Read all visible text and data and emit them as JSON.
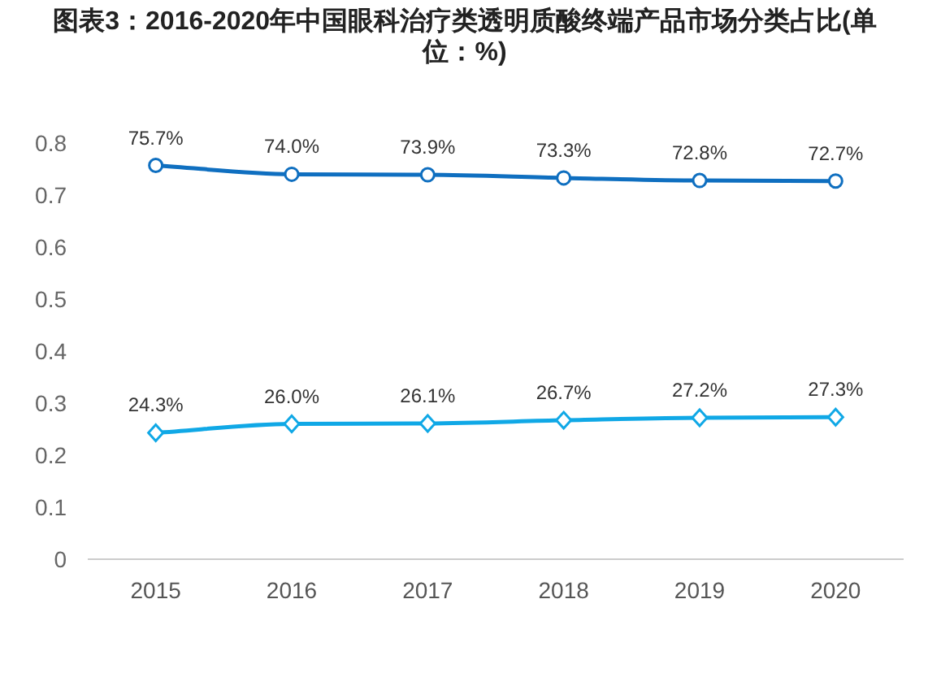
{
  "chart_data": {
    "type": "line",
    "title": "图表3：2016-2020年中国眼科治疗类透明质酸终端产品市场分类占比(单位：%)",
    "categories": [
      "2015",
      "2016",
      "2017",
      "2018",
      "2019",
      "2020"
    ],
    "series": [
      {
        "color": "#0f6fc0",
        "marker": "circle",
        "values": [
          0.757,
          0.74,
          0.739,
          0.733,
          0.728,
          0.727
        ],
        "value_labels": [
          "75.7%",
          "74.0%",
          "73.9%",
          "73.3%",
          "72.8%",
          "72.7%"
        ]
      },
      {
        "color": "#10a8e6",
        "marker": "diamond",
        "values": [
          0.243,
          0.26,
          0.261,
          0.267,
          0.272,
          0.273
        ],
        "value_labels": [
          "24.3%",
          "26.0%",
          "26.1%",
          "26.7%",
          "27.2%",
          "27.3%"
        ]
      }
    ],
    "ylim": [
      0,
      0.8
    ],
    "yticks": [
      0,
      0.1,
      0.2,
      0.3,
      0.4,
      0.5,
      0.6,
      0.7,
      0.8
    ]
  }
}
